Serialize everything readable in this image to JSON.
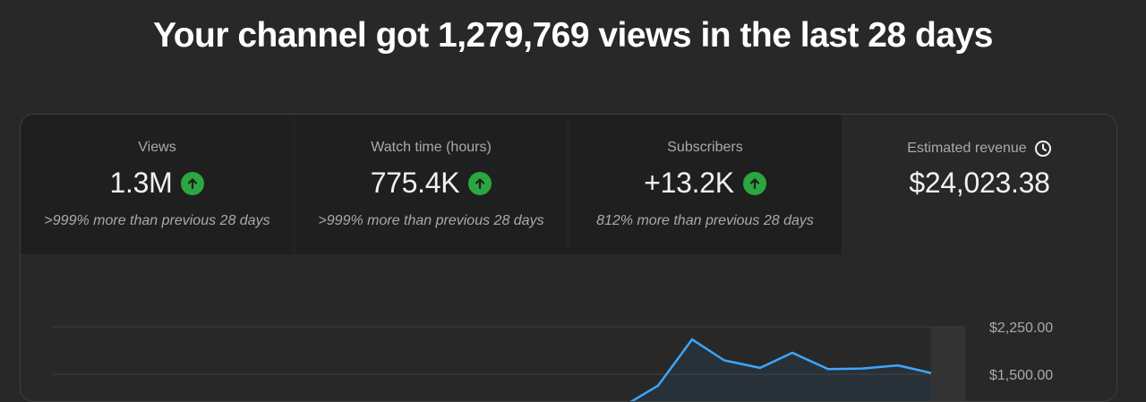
{
  "headline": "Your channel got 1,279,769 views in the last 28 days",
  "metrics": [
    {
      "label": "Views",
      "value": "1.3M",
      "note": ">999% more than previous 28 days",
      "trend": "up"
    },
    {
      "label": "Watch time (hours)",
      "value": "775.4K",
      "note": ">999% more than previous 28 days",
      "trend": "up"
    },
    {
      "label": "Subscribers",
      "value": "+13.2K",
      "note": "812% more than previous 28 days",
      "trend": "up"
    }
  ],
  "revenue": {
    "label": "Estimated revenue",
    "value": "$24,023.38",
    "icon": "clock-icon"
  },
  "colors": {
    "up": "#2ba640",
    "line": "#3ea6ff",
    "background": "#282828",
    "tile": "#1f1f1f"
  },
  "chart_data": {
    "type": "line",
    "y_ticks": [
      "$2,250.00",
      "$1,500.00"
    ],
    "series": [
      {
        "values": [
          1050,
          1320,
          2050,
          1720,
          1600,
          1840,
          1580,
          1590,
          1640,
          1520
        ]
      }
    ]
  }
}
